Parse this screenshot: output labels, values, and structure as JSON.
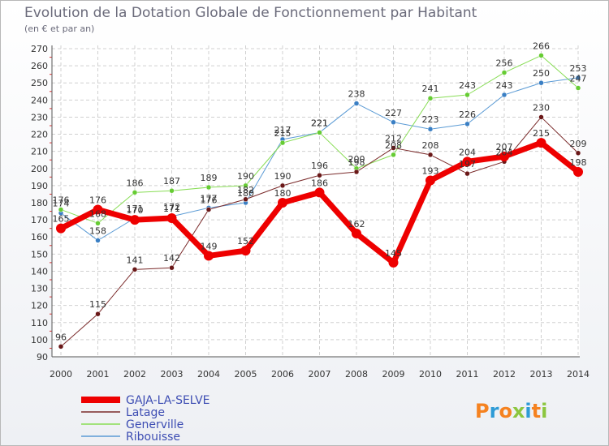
{
  "header": {
    "title": "Evolution de la Dotation Globale de Fonctionnement par Habitant",
    "subtitle": "(en € et par an)"
  },
  "logo": {
    "text": "Proxiti"
  },
  "chart_data": {
    "type": "line",
    "x": [
      "2000",
      "2001",
      "2002",
      "2003",
      "2004",
      "2005",
      "2006",
      "2007",
      "2008",
      "2009",
      "2010",
      "2011",
      "2012",
      "2013",
      "2014"
    ],
    "ylim": [
      90,
      270
    ],
    "yticks": [
      90,
      100,
      110,
      120,
      130,
      140,
      150,
      160,
      170,
      180,
      190,
      200,
      210,
      220,
      230,
      240,
      250,
      260,
      270
    ],
    "grid": true,
    "legend": "bottom-left",
    "series": [
      {
        "name": "Ribouisse",
        "color": "#5b9bd5",
        "dot": "#3a7fc4",
        "width": 1,
        "values": [
          174,
          158,
          171,
          172,
          177,
          180,
          217,
          221,
          238,
          227,
          223,
          226,
          243,
          250,
          253
        ],
        "labels": [
          "174",
          "158",
          "171",
          "172",
          "177",
          "180",
          "217",
          "221",
          "238",
          "227",
          "223",
          "226",
          "243",
          "250",
          "253"
        ]
      },
      {
        "name": "Generville",
        "color": "#88dd55",
        "dot": "#66cc33",
        "width": 1,
        "values": [
          176,
          168,
          186,
          187,
          189,
          190,
          215,
          221,
          200,
          208,
          241,
          243,
          256,
          266,
          247
        ],
        "labels": [
          "176",
          "168",
          "186",
          "187",
          "189",
          "190",
          "215",
          "221",
          "200",
          "208",
          "241",
          "243",
          "256",
          "266",
          "247"
        ]
      },
      {
        "name": "Latage",
        "color": "#7a2a2a",
        "dot": "#6a1818",
        "width": 1,
        "values": [
          96,
          115,
          141,
          142,
          176,
          182,
          190,
          196,
          198,
          212,
          208,
          197,
          204,
          230,
          209
        ],
        "labels": [
          "96",
          "115",
          "141",
          "142",
          "176",
          "182",
          "190",
          "196",
          "198",
          "212",
          "208",
          "197",
          "204",
          "230",
          "209"
        ]
      },
      {
        "name": "GAJA-LA-SELVE",
        "color": "#ee0000",
        "dot": "#ee0000",
        "width": 7,
        "values": [
          165,
          176,
          170,
          171,
          149,
          152,
          180,
          186,
          162,
          145,
          193,
          204,
          207,
          215,
          198
        ],
        "labels": [
          "165",
          "176",
          "170",
          "171",
          "149",
          "152",
          "180",
          "186",
          "162",
          "145",
          "193",
          "204",
          "207",
          "215",
          "198"
        ]
      }
    ]
  }
}
